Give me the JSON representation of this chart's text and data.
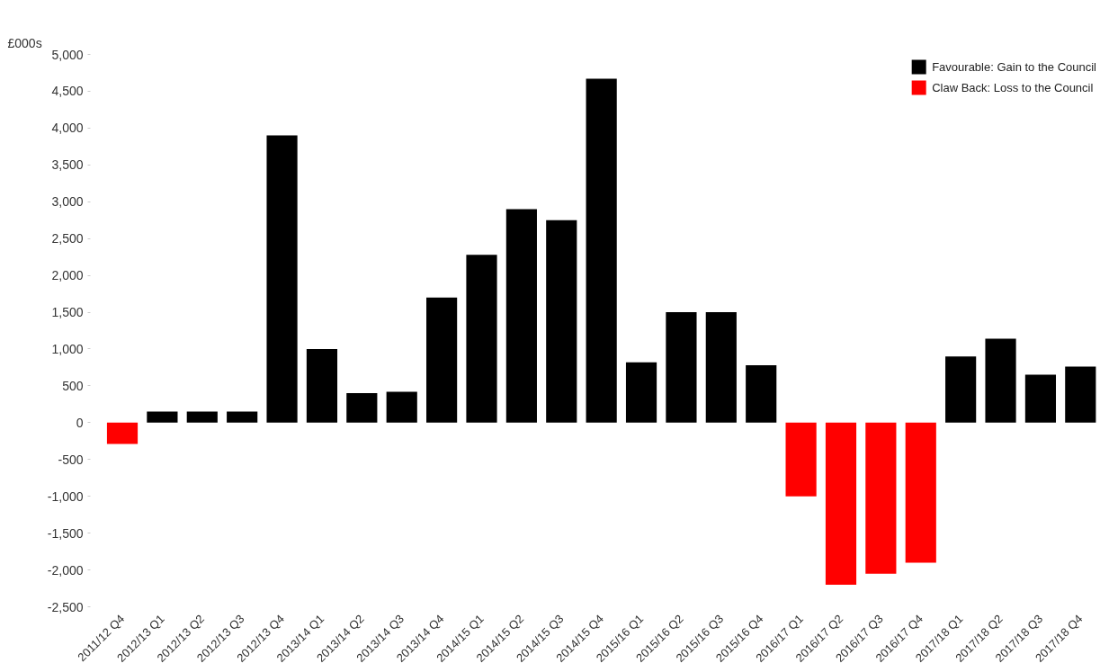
{
  "chart_data": {
    "type": "bar",
    "ylabel": "£000s",
    "categories": [
      "2011/12 Q4",
      "2012/13 Q1",
      "2012/13 Q2",
      "2012/13 Q3",
      "2012/13 Q4",
      "2013/14 Q1",
      "2013/14 Q2",
      "2013/14 Q3",
      "2013/14 Q4",
      "2014/15 Q1",
      "2014/15 Q2",
      "2014/15 Q3",
      "2014/15 Q4",
      "2015/16 Q1",
      "2015/16 Q2",
      "2015/16 Q3",
      "2015/16 Q4",
      "2016/17 Q1",
      "2016/17 Q2",
      "2016/17 Q3",
      "2016/17 Q4",
      "2017/18 Q1",
      "2017/18 Q2",
      "2017/18 Q3",
      "2017/18 Q4"
    ],
    "series": [
      {
        "name": "Favourable: Gain to the Council",
        "color": "#000000",
        "values": [
          null,
          150,
          150,
          150,
          3900,
          1000,
          400,
          420,
          1700,
          2280,
          2900,
          2750,
          4670,
          820,
          1500,
          1500,
          780,
          null,
          null,
          null,
          null,
          900,
          1140,
          650,
          760
        ]
      },
      {
        "name": "Claw Back: Loss to the Council",
        "color": "#ff0000",
        "values": [
          -290,
          null,
          null,
          null,
          null,
          null,
          null,
          null,
          null,
          null,
          null,
          null,
          null,
          null,
          null,
          null,
          null,
          -1000,
          -2200,
          -2050,
          -1900,
          null,
          null,
          null,
          null
        ]
      }
    ],
    "ylim": [
      -2500,
      5000
    ],
    "yticks": [
      {
        "value": -2500,
        "label": "-2,500"
      },
      {
        "value": -2000,
        "label": "-2,000"
      },
      {
        "value": -1500,
        "label": "-1,500"
      },
      {
        "value": -1000,
        "label": "-1,000"
      },
      {
        "value": -500,
        "label": "-500"
      },
      0,
      {
        "value": 500,
        "label": "500"
      },
      {
        "value": 1000,
        "label": "1,000"
      },
      {
        "value": 1500,
        "label": "1,500"
      },
      {
        "value": 2000,
        "label": "2,000"
      },
      {
        "value": 2500,
        "label": "2,500"
      },
      {
        "value": 3000,
        "label": "3,000"
      },
      {
        "value": 3500,
        "label": "3,500"
      },
      {
        "value": 4000,
        "label": "4,000"
      },
      {
        "value": 4500,
        "label": "4,500"
      },
      {
        "value": 5000,
        "label": "5,000"
      }
    ],
    "grid": false,
    "legend": "top right"
  }
}
